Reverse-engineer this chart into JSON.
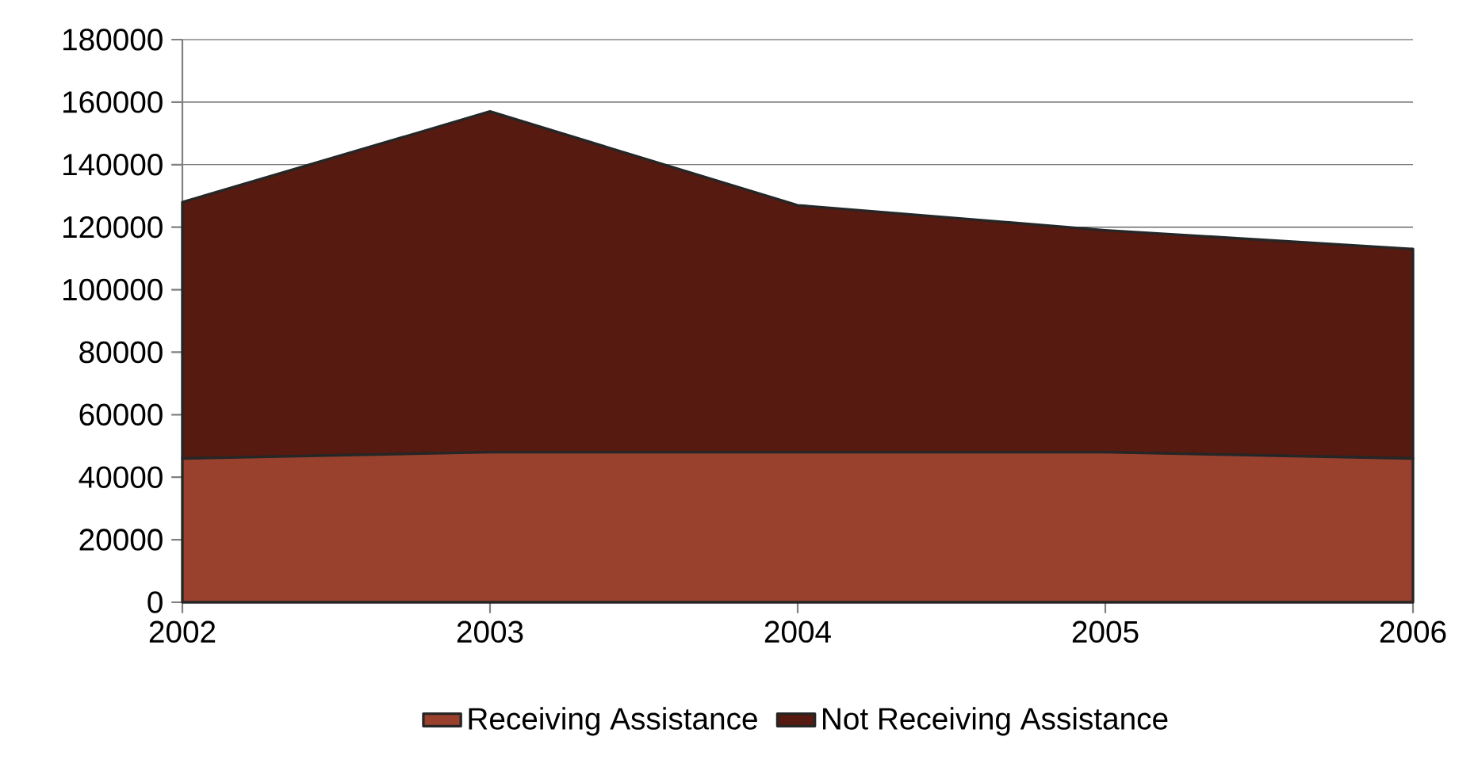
{
  "chart_data": {
    "type": "area",
    "stacked": true,
    "categories": [
      "2002",
      "2003",
      "2004",
      "2005",
      "2006"
    ],
    "series": [
      {
        "name": "Receiving Assistance",
        "color": "#9a412e",
        "values": [
          46000,
          48000,
          48000,
          48000,
          46000
        ]
      },
      {
        "name": "Not Receiving Assistance",
        "color": "#561a10",
        "values": [
          82000,
          109000,
          79000,
          71000,
          67000
        ]
      }
    ],
    "ylim": [
      0,
      180000
    ],
    "yticks": [
      0,
      20000,
      40000,
      60000,
      80000,
      100000,
      120000,
      140000,
      160000,
      180000
    ],
    "grid": "y",
    "legend": "bottom"
  }
}
